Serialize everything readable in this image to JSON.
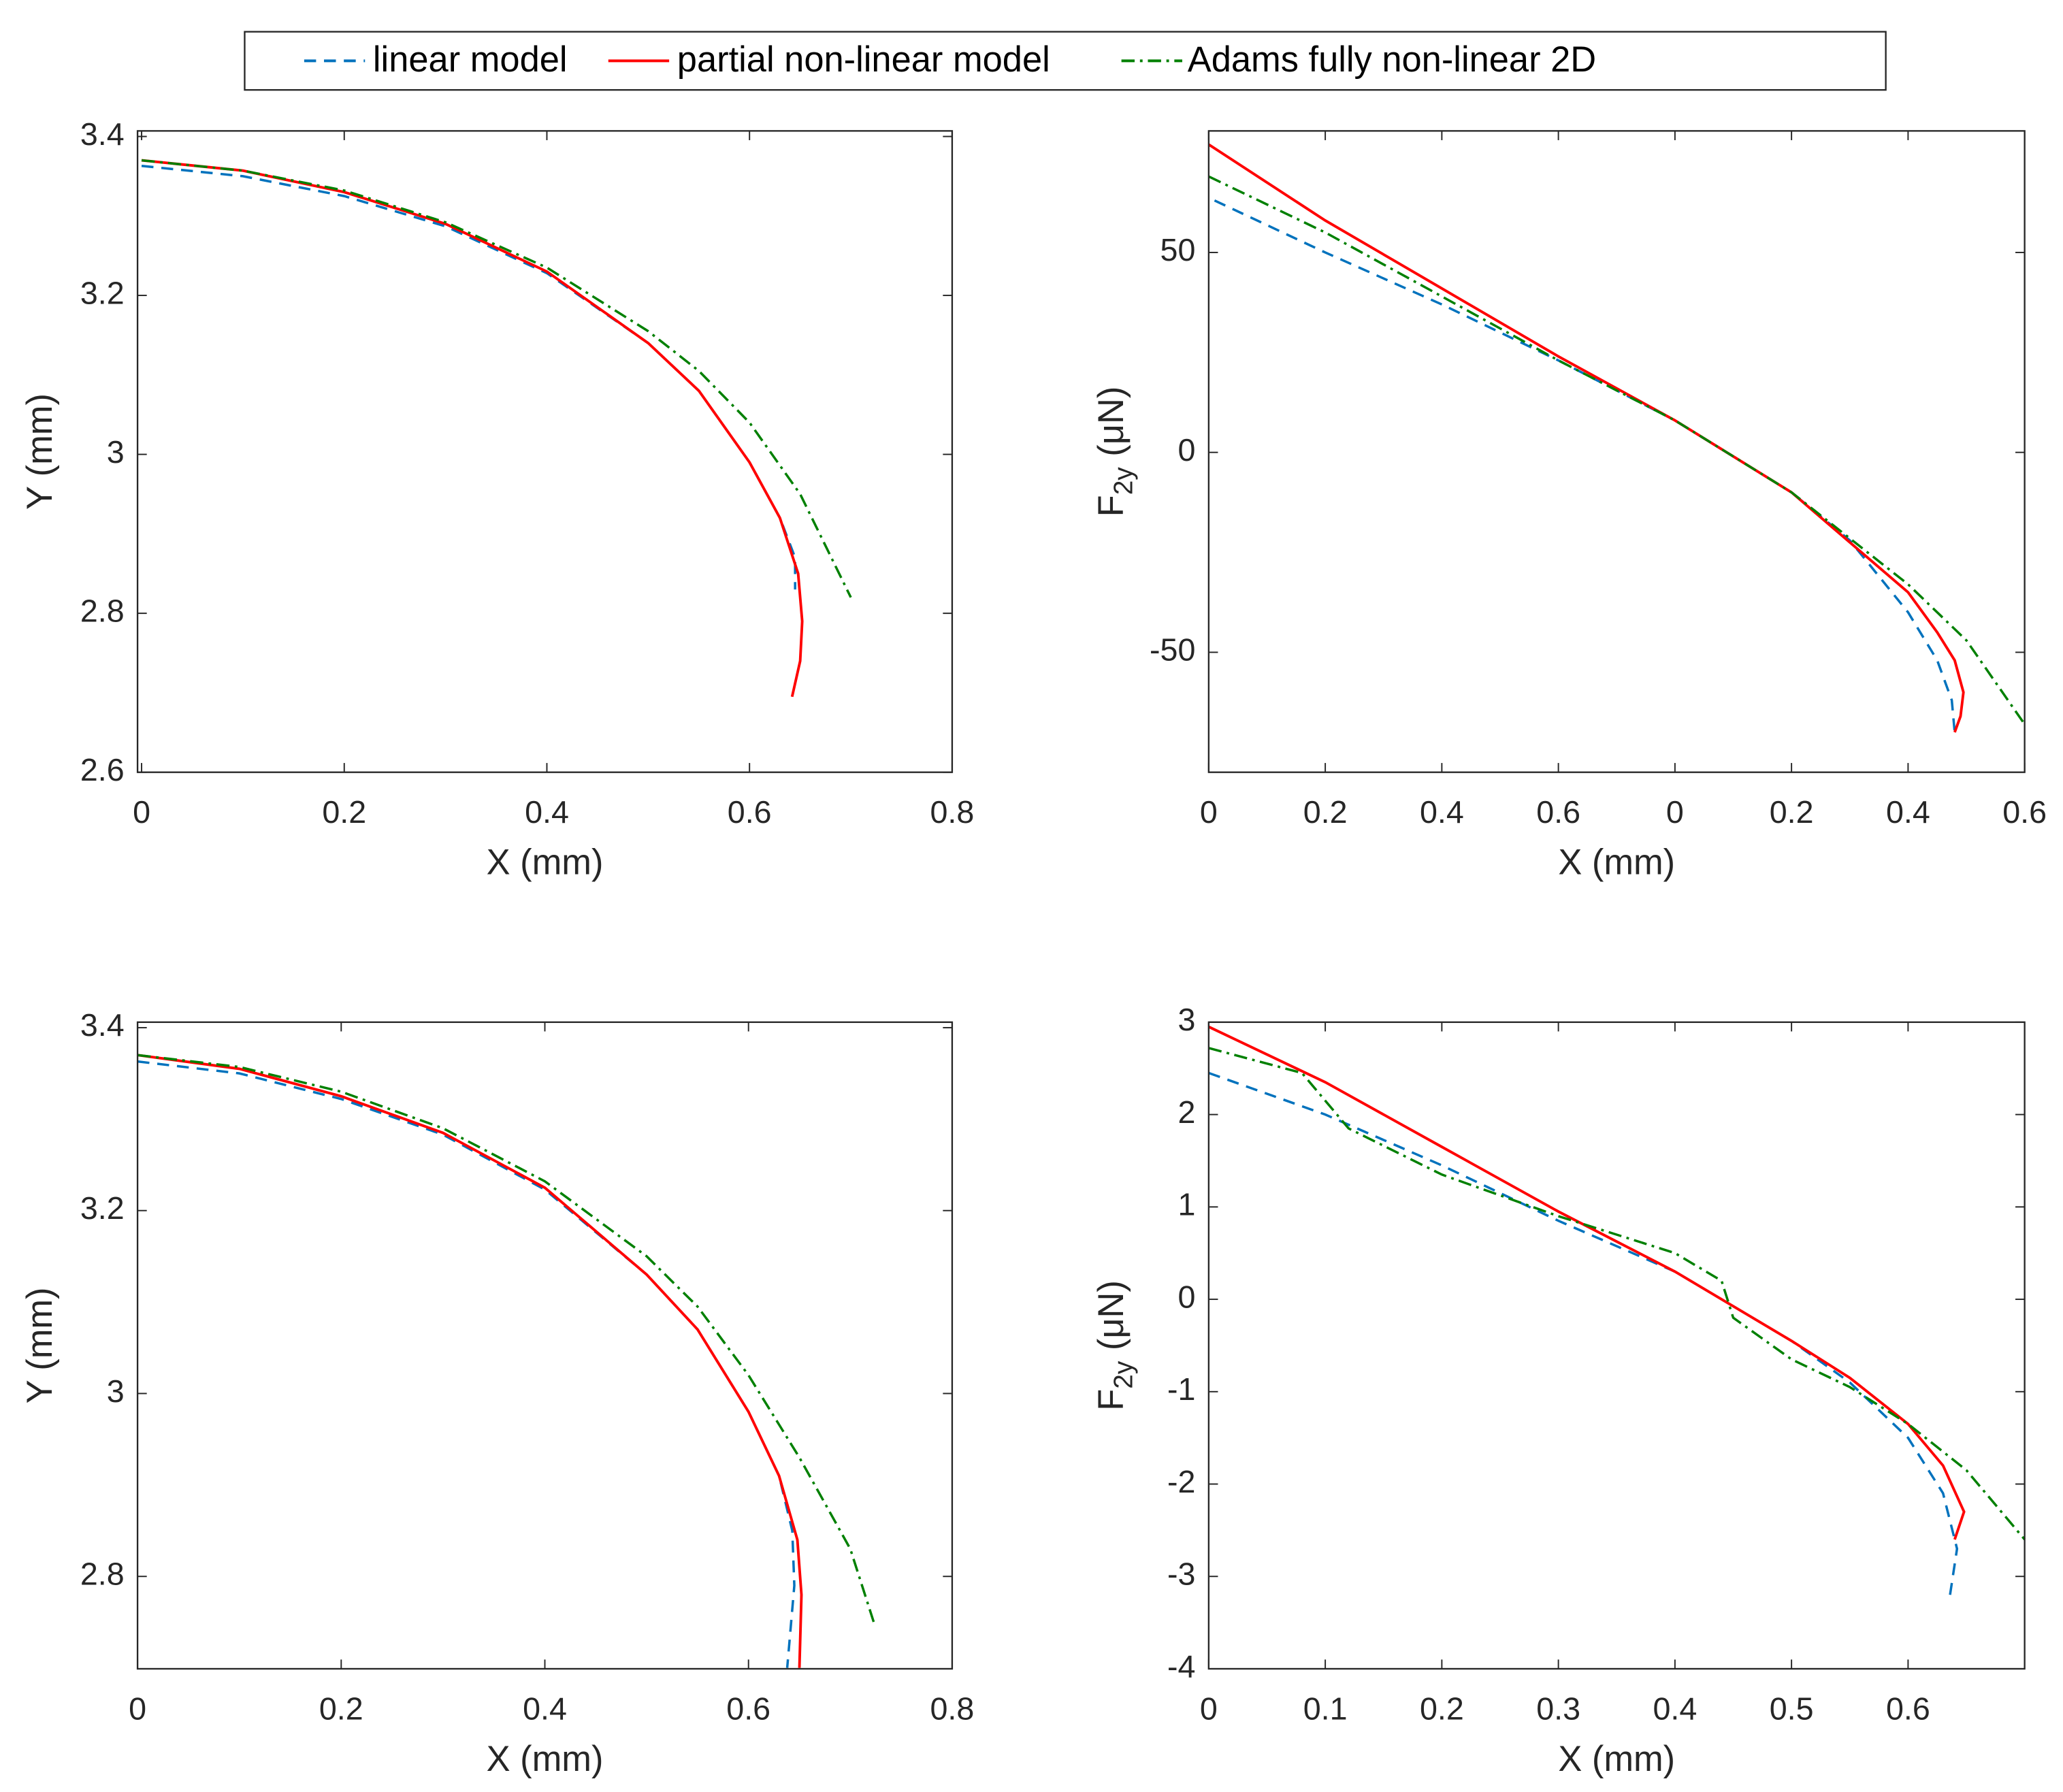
{
  "chart_data": [
    {
      "type": "line",
      "xlabel": "X (mm)",
      "ylabel": "Y (mm)",
      "xlim": [
        -0.004,
        0.8
      ],
      "xticks": [
        0,
        0.2,
        0.4,
        0.6,
        0.8
      ],
      "ylim": [
        2.6,
        3.407
      ],
      "yticks": [
        2.6,
        2.8,
        3,
        3.2,
        3.4
      ],
      "series": [
        {
          "name": "linear model",
          "color": "#0072bd",
          "dash": "dashed",
          "x": [
            0,
            0.1,
            0.2,
            0.3,
            0.4,
            0.5,
            0.55,
            0.6,
            0.63,
            0.645,
            0.645
          ],
          "values": [
            3.363,
            3.35,
            3.325,
            3.287,
            3.228,
            3.14,
            3.08,
            2.99,
            2.92,
            2.87,
            2.83
          ]
        },
        {
          "name": "partial non-linear model",
          "color": "#ff0000",
          "dash": "solid",
          "x": [
            0,
            0.1,
            0.2,
            0.3,
            0.4,
            0.5,
            0.55,
            0.6,
            0.63,
            0.648,
            0.652,
            0.65,
            0.642
          ],
          "values": [
            3.37,
            3.357,
            3.33,
            3.29,
            3.23,
            3.14,
            3.08,
            2.99,
            2.92,
            2.85,
            2.79,
            2.74,
            2.695
          ]
        },
        {
          "name": "Adams fully non-linear 2D",
          "color": "#008000",
          "dash": "dashdot",
          "x": [
            0,
            0.1,
            0.2,
            0.3,
            0.4,
            0.5,
            0.55,
            0.6,
            0.65,
            0.7
          ],
          "values": [
            3.37,
            3.357,
            3.332,
            3.292,
            3.235,
            3.155,
            3.105,
            3.04,
            2.95,
            2.82
          ]
        }
      ]
    },
    {
      "type": "line",
      "xlabel": "X (mm)",
      "ylabel": "F",
      "ylabel_sub": "2y",
      "ylabel_unit": "(μN)",
      "xlim": [
        0,
        1.4
      ],
      "xticks": [
        0,
        0.2,
        0.4,
        0.6,
        {
          "value": 0.8,
          "label": "0"
        },
        {
          "value": 1.0,
          "label": "0.2"
        },
        {
          "value": 1.2,
          "label": "0.4"
        },
        {
          "value": 1.4,
          "label": "0.6"
        }
      ],
      "ylim": [
        -80,
        80.4
      ],
      "yticks": [
        -50,
        0,
        50
      ],
      "series": [
        {
          "color": "#0072bd",
          "dash": "dashed",
          "x": [
            0.01,
            0.2,
            0.4,
            0.6,
            0.8,
            1.0,
            1.1,
            1.2,
            1.25,
            1.275,
            1.28
          ],
          "values": [
            63,
            50,
            37,
            23,
            8,
            -10,
            -22,
            -40,
            -52,
            -62,
            -70
          ]
        },
        {
          "color": "#ff0000",
          "dash": "solid",
          "x": [
            0,
            0.2,
            0.4,
            0.6,
            0.8,
            1.0,
            1.2,
            1.25,
            1.28,
            1.295,
            1.29,
            1.28
          ],
          "values": [
            77,
            58,
            41,
            24,
            8,
            -10,
            -35,
            -45,
            -52,
            -60,
            -66,
            -70
          ]
        },
        {
          "color": "#008000",
          "dash": "dashdot",
          "x": [
            0,
            0.2,
            0.4,
            0.6,
            0.8,
            1.0,
            1.2,
            1.3,
            1.4
          ],
          "values": [
            69,
            55,
            39,
            23,
            8,
            -10,
            -33,
            -47,
            -68
          ]
        }
      ]
    },
    {
      "type": "line",
      "xlabel": "X (mm)",
      "ylabel": "Y (mm)",
      "xlim": [
        0,
        0.8
      ],
      "xticks": [
        0,
        0.2,
        0.4,
        0.6,
        0.8
      ],
      "ylim": [
        2.699,
        3.406
      ],
      "yticks": [
        2.8,
        3,
        3.2,
        3.4
      ],
      "series": [
        {
          "color": "#0072bd",
          "dash": "dashed",
          "x": [
            0,
            0.1,
            0.2,
            0.3,
            0.4,
            0.5,
            0.55,
            0.6,
            0.63,
            0.643,
            0.645,
            0.638
          ],
          "values": [
            3.363,
            3.35,
            3.322,
            3.283,
            3.223,
            3.13,
            3.07,
            2.98,
            2.91,
            2.85,
            2.79,
            2.7
          ]
        },
        {
          "color": "#ff0000",
          "dash": "solid",
          "x": [
            0,
            0.1,
            0.2,
            0.3,
            0.4,
            0.5,
            0.55,
            0.6,
            0.63,
            0.648,
            0.652,
            0.65
          ],
          "values": [
            3.37,
            3.355,
            3.325,
            3.285,
            3.225,
            3.13,
            3.07,
            2.98,
            2.91,
            2.84,
            2.78,
            2.7
          ]
        },
        {
          "color": "#008000",
          "dash": "dashdot",
          "x": [
            0,
            0.1,
            0.2,
            0.3,
            0.4,
            0.5,
            0.55,
            0.6,
            0.65,
            0.7,
            0.723
          ],
          "values": [
            3.37,
            3.357,
            3.33,
            3.29,
            3.232,
            3.15,
            3.095,
            3.02,
            2.93,
            2.83,
            2.75
          ]
        }
      ]
    },
    {
      "type": "line",
      "xlabel": "X (mm)",
      "ylabel": "F",
      "ylabel_sub": "2y",
      "ylabel_unit": "(μN)",
      "xlim": [
        0,
        0.7
      ],
      "xticks": [
        0,
        0.1,
        0.2,
        0.3,
        0.4,
        0.5,
        0.6
      ],
      "ylim": [
        -4,
        3
      ],
      "yticks": [
        -4,
        -3,
        -2,
        -1,
        0,
        1,
        2,
        3
      ],
      "series": [
        {
          "color": "#0072bd",
          "dash": "dashed",
          "x": [
            0,
            0.1,
            0.2,
            0.3,
            0.4,
            0.5,
            0.55,
            0.6,
            0.63,
            0.642,
            0.636
          ],
          "values": [
            2.45,
            2.0,
            1.45,
            0.85,
            0.3,
            -0.45,
            -0.9,
            -1.5,
            -2.1,
            -2.7,
            -3.2
          ]
        },
        {
          "color": "#ff0000",
          "dash": "solid",
          "x": [
            0,
            0.1,
            0.2,
            0.3,
            0.4,
            0.5,
            0.55,
            0.6,
            0.63,
            0.648,
            0.64
          ],
          "values": [
            2.95,
            2.35,
            1.65,
            0.95,
            0.3,
            -0.45,
            -0.85,
            -1.35,
            -1.8,
            -2.3,
            -2.6
          ]
        },
        {
          "color": "#008000",
          "dash": "dashdot",
          "x": [
            0,
            0.08,
            0.12,
            0.2,
            0.3,
            0.4,
            0.44,
            0.45,
            0.5,
            0.55,
            0.6,
            0.65,
            0.7
          ],
          "values": [
            2.72,
            2.45,
            1.85,
            1.35,
            0.9,
            0.5,
            0.2,
            -0.2,
            -0.65,
            -0.95,
            -1.35,
            -1.85,
            -2.6
          ]
        }
      ]
    }
  ]
}
